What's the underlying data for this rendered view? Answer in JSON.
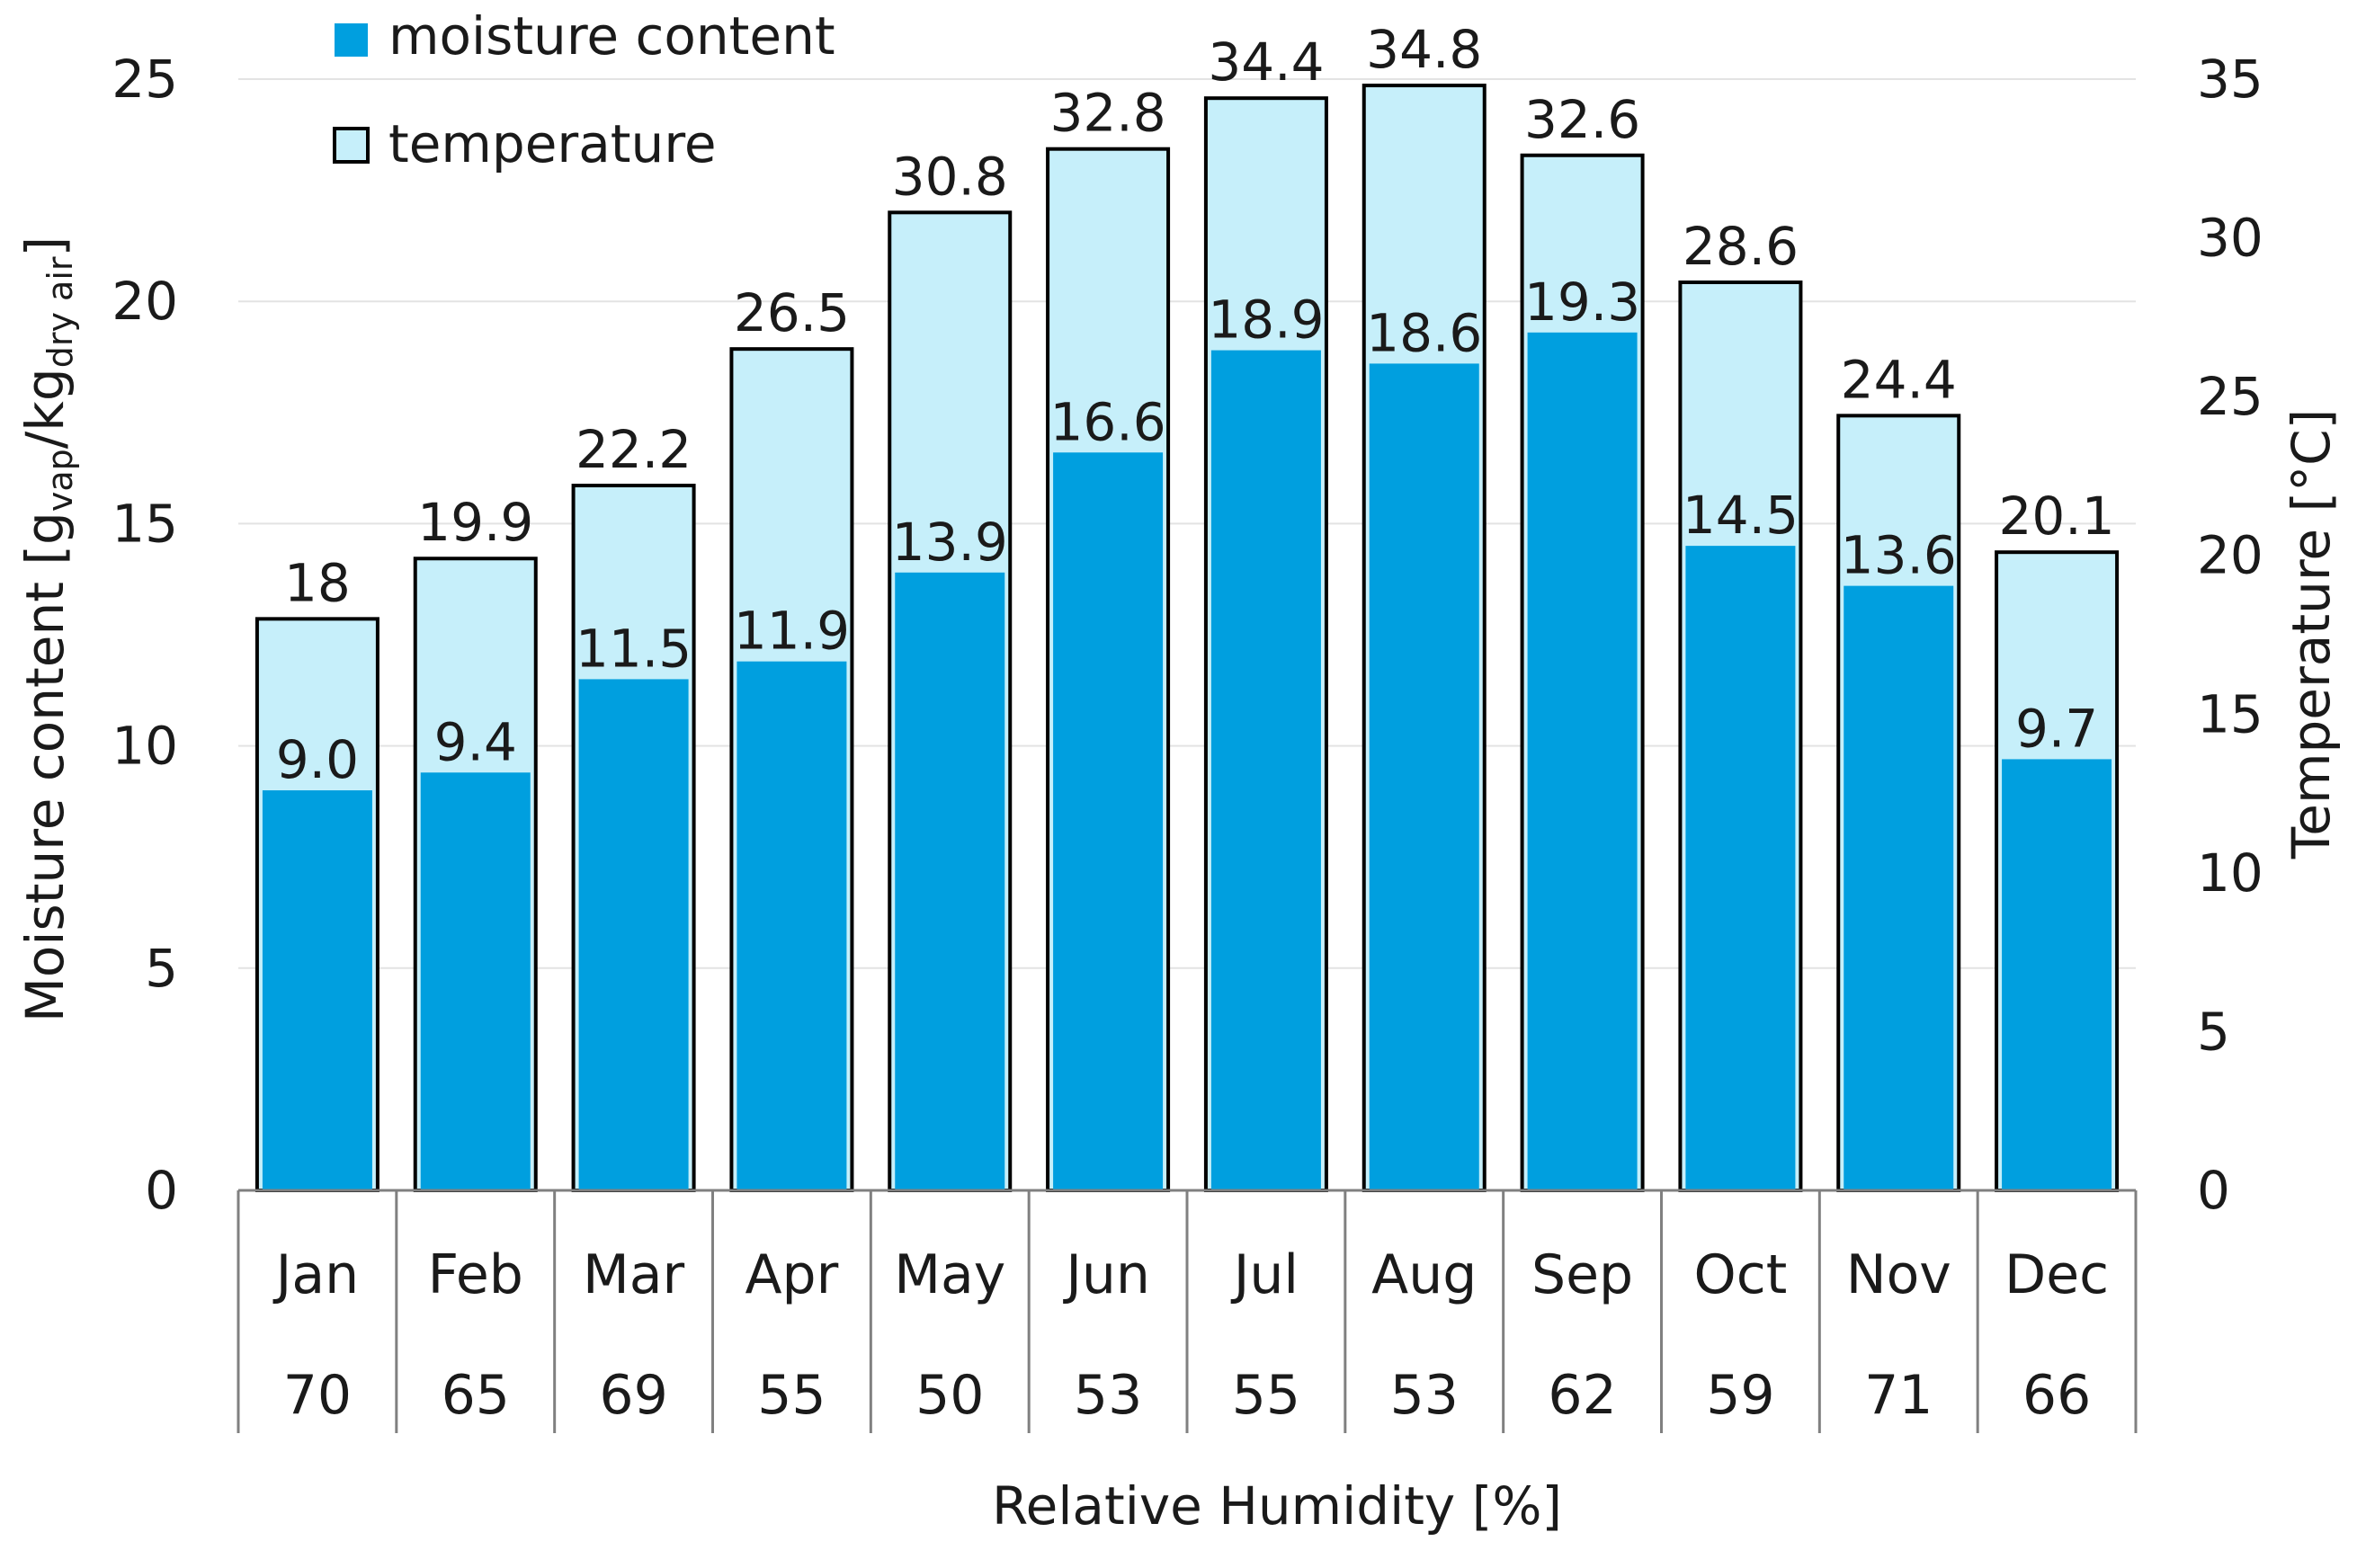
{
  "chart_data": {
    "type": "bar",
    "title": "",
    "categories": [
      "Jan",
      "Feb",
      "Mar",
      "Apr",
      "May",
      "Jun",
      "Jul",
      "Aug",
      "Sep",
      "Oct",
      "Nov",
      "Dec"
    ],
    "category_sublabels": [
      "70",
      "65",
      "69",
      "55",
      "50",
      "53",
      "55",
      "53",
      "62",
      "59",
      "71",
      "66"
    ],
    "series": [
      {
        "name": "temperature",
        "axis": "right",
        "values": [
          18,
          19.9,
          22.2,
          26.5,
          30.8,
          32.8,
          34.4,
          34.8,
          32.6,
          28.6,
          24.4,
          20.1
        ],
        "labels": [
          "18",
          "19.9",
          "22.2",
          "26.5",
          "30.8",
          "32.8",
          "34.4",
          "34.8",
          "32.6",
          "28.6",
          "24.4",
          "20.1"
        ],
        "fill": "#c6effa",
        "stroke": "#000000"
      },
      {
        "name": "moisture content",
        "axis": "left",
        "values": [
          9.0,
          9.4,
          11.5,
          11.9,
          13.9,
          16.6,
          18.9,
          18.6,
          19.3,
          14.5,
          13.6,
          9.7
        ],
        "labels": [
          "9.0",
          "9.4",
          "11.5",
          "11.9",
          "13.9",
          "16.6",
          "18.9",
          "18.6",
          "19.3",
          "14.5",
          "13.6",
          "9.7"
        ],
        "fill": "#009fdf"
      }
    ],
    "y_left": {
      "label_main": "Moisture content [g",
      "label_sub1": "vap",
      "label_mid": "/kg",
      "label_sub2": "dry air",
      "label_end": "]",
      "ylim": [
        0,
        25
      ],
      "ticks": [
        "0",
        "5",
        "10",
        "15",
        "20",
        "25"
      ]
    },
    "y_right": {
      "label": "Temperature [°C]",
      "ylim": [
        0,
        35
      ],
      "ticks": [
        "0",
        "5",
        "10",
        "15",
        "20",
        "25",
        "30",
        "35"
      ]
    },
    "xlabel": "Relative Humidity [%]",
    "grid": true,
    "legend_position": "top-left",
    "colors": {
      "grid": "#e3e3e3",
      "axis": "#808080",
      "text": "#1a1a1a"
    }
  }
}
